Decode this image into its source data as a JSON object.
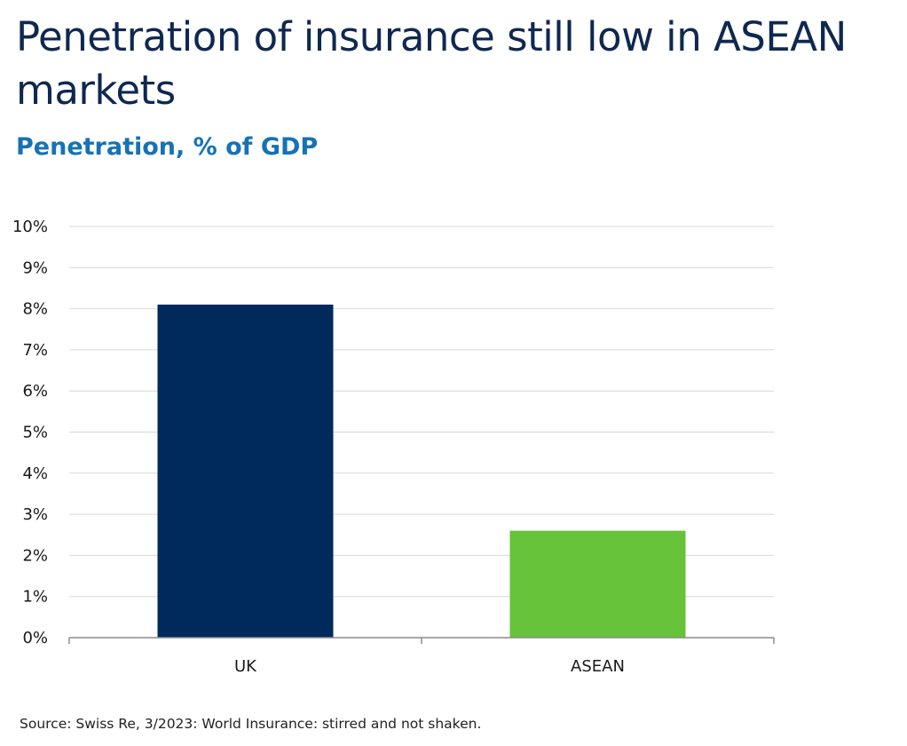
{
  "title": "Penetration of insurance still low in ASEAN markets",
  "subtitle": "Penetration, % of GDP",
  "source": "Source: Swiss Re, 3/2023: World Insurance: stirred and not shaken.",
  "colors": {
    "title": "#0f2850",
    "subtitle": "#1672b5",
    "grid": "#d9d9d9",
    "axis": "#8c8c8c"
  },
  "chart_data": {
    "type": "bar",
    "title": "Penetration of insurance still low in ASEAN markets",
    "subtitle": "Penetration, % of GDP",
    "xlabel": "",
    "ylabel": "",
    "categories": [
      "UK",
      "ASEAN"
    ],
    "values": [
      8.1,
      2.6
    ],
    "bar_colors": [
      "#012a5c",
      "#66c33a"
    ],
    "ylim": [
      0,
      10
    ],
    "yticks": [
      0,
      1,
      2,
      3,
      4,
      5,
      6,
      7,
      8,
      9,
      10
    ],
    "ytick_labels": [
      "0%",
      "1%",
      "2%",
      "3%",
      "4%",
      "5%",
      "6%",
      "7%",
      "8%",
      "9%",
      "10%"
    ],
    "grid": true,
    "legend": "none"
  }
}
